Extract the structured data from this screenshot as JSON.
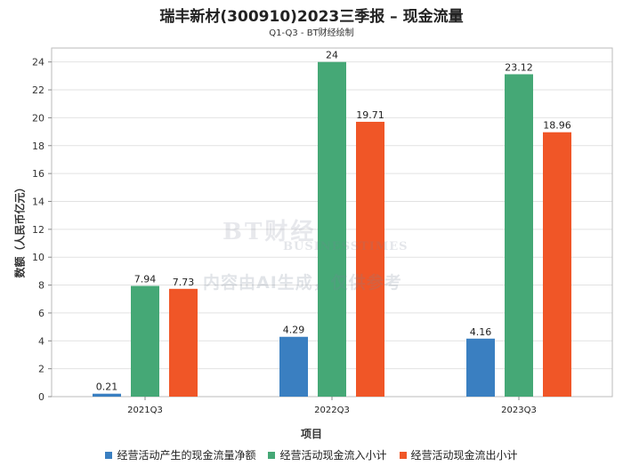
{
  "chart_data": {
    "type": "bar",
    "title": "瑞丰新材(300910)2023三季报 – 现金流量",
    "subtitle": "Q1-Q3 - BT财经绘制",
    "xlabel": "项目",
    "ylabel": "数额（人民币亿元）",
    "categories": [
      "2021Q3",
      "2022Q3",
      "2023Q3"
    ],
    "ylim": [
      0,
      25
    ],
    "yticks": [
      0,
      2,
      4,
      6,
      8,
      10,
      12,
      14,
      16,
      18,
      20,
      22,
      24
    ],
    "grid": true,
    "legend_position": "bottom",
    "series": [
      {
        "name": "经营活动产生的现金流量净额",
        "color": "#3a7fc1",
        "values": [
          0.21,
          4.29,
          4.16
        ],
        "labels": [
          "0.21",
          "4.29",
          "4.16"
        ]
      },
      {
        "name": "经营活动现金流入小计",
        "color": "#45a876",
        "values": [
          7.94,
          24,
          23.12
        ],
        "labels": [
          "7.94",
          "24",
          "23.12"
        ]
      },
      {
        "name": "经营活动现金流出小计",
        "color": "#f05627",
        "values": [
          7.73,
          19.71,
          18.96
        ],
        "labels": [
          "7.73",
          "19.71",
          "18.96"
        ]
      }
    ]
  },
  "watermark": {
    "logo": "BT财经",
    "logo_sub": "BUSINESSTIMES",
    "text": "内容由AI生成，仅供参考"
  }
}
